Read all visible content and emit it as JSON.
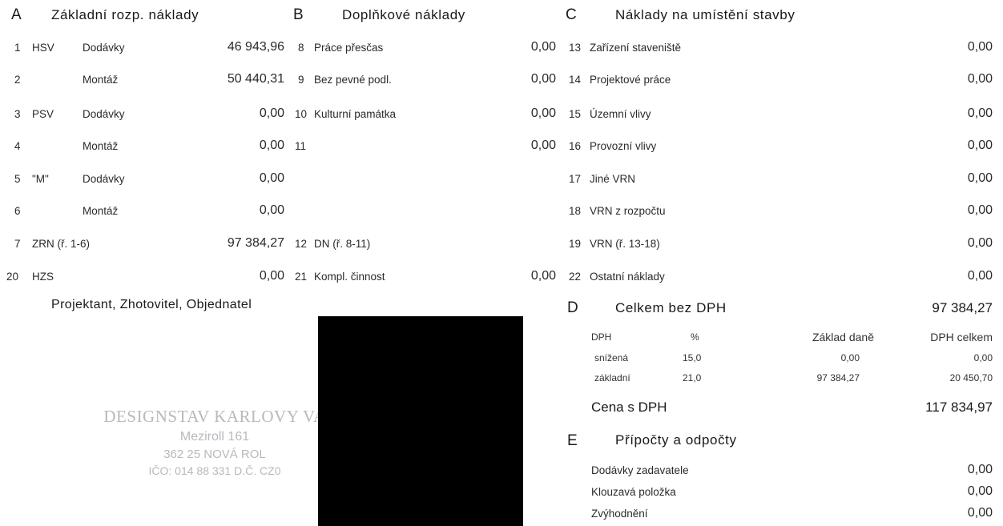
{
  "section_a": {
    "letter": "A",
    "title": "Základní rozp. náklady",
    "rows": [
      {
        "num": "1",
        "cat": "HSV",
        "type": "Dodávky",
        "value": "46 943,96"
      },
      {
        "num": "2",
        "cat": "",
        "type": "Montáž",
        "value": "50 440,31"
      },
      {
        "num": "3",
        "cat": "PSV",
        "type": "Dodávky",
        "value": "0,00"
      },
      {
        "num": "4",
        "cat": "",
        "type": "Montáž",
        "value": "0,00"
      },
      {
        "num": "5",
        "cat": "\"M\"",
        "type": "Dodávky",
        "value": "0,00"
      },
      {
        "num": "6",
        "cat": "",
        "type": "Montáž",
        "value": "0,00"
      },
      {
        "num": "7",
        "cat": "ZRN (ř. 1-6)",
        "type": "",
        "value": "97 384,27"
      },
      {
        "num": "20",
        "cat": "HZS",
        "type": "",
        "value": "0,00"
      }
    ]
  },
  "section_b": {
    "letter": "B",
    "title": "Doplňkové náklady",
    "rows": [
      {
        "num": "8",
        "label": "Práce přesčas",
        "value": "0,00"
      },
      {
        "num": "9",
        "label": "Bez pevné podl.",
        "value": "0,00"
      },
      {
        "num": "10",
        "label": "Kulturní památka",
        "value": "0,00"
      },
      {
        "num": "11",
        "label": "",
        "value": "0,00"
      },
      {
        "num": "12",
        "label": "DN (ř. 8-11)",
        "value": ""
      },
      {
        "num": "21",
        "label": "Kompl. činnost",
        "value": "0,00"
      }
    ]
  },
  "section_c": {
    "letter": "C",
    "title": "Náklady na umístění stavby",
    "rows": [
      {
        "num": "13",
        "label": "Zařízení staveniště",
        "value": "0,00"
      },
      {
        "num": "14",
        "label": "Projektové práce",
        "value": "0,00"
      },
      {
        "num": "15",
        "label": "Územní vlivy",
        "value": "0,00"
      },
      {
        "num": "16",
        "label": "Provozní vlivy",
        "value": "0,00"
      },
      {
        "num": "17",
        "label": "Jiné VRN",
        "value": "0,00"
      },
      {
        "num": "18",
        "label": "VRN z rozpočtu",
        "value": "0,00"
      },
      {
        "num": "19",
        "label": "VRN (ř. 13-18)",
        "value": "0,00"
      },
      {
        "num": "22",
        "label": "Ostatní náklady",
        "value": "0,00"
      }
    ]
  },
  "section_d": {
    "letter": "D",
    "title": "Celkem bez DPH",
    "total": "97 384,27",
    "headers": {
      "dph": "DPH",
      "pct": "%",
      "base": "Základ daně",
      "sum": "DPH celkem"
    },
    "rows": [
      {
        "label": "snížená",
        "pct": "15,0",
        "base": "0,00",
        "sum": "0,00"
      },
      {
        "label": "základní",
        "pct": "21,0",
        "base": "97 384,27",
        "sum": "20 450,70"
      }
    ],
    "price_label": "Cena s DPH",
    "price_value": "117 834,97"
  },
  "section_e": {
    "letter": "E",
    "title": "Přípočty a odpočty",
    "rows": [
      {
        "label": "Dodávky zadavatele",
        "value": "0,00"
      },
      {
        "label": "Klouzavá položka",
        "value": "0,00"
      },
      {
        "label": "Zvýhodnění",
        "value": "0,00"
      }
    ]
  },
  "parties": {
    "title": "Projektant, Zhotovitel, Objednatel"
  },
  "stamp": {
    "line1": "DESIGNSTAV KARLOVY VA",
    "line2": "Meziroll 161",
    "line3": "362 25 NOVÁ ROL",
    "line4": "IČO: 014 88 331 D.Č. CZ0"
  }
}
